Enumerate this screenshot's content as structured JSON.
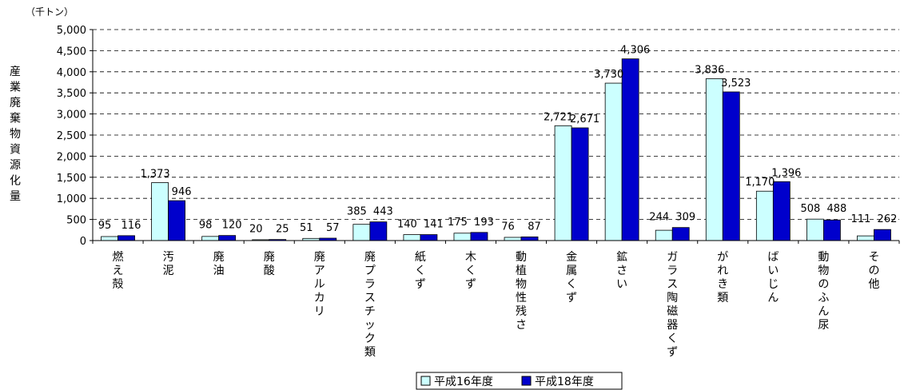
{
  "chart_data": {
    "type": "bar",
    "unit_label": "（千トン）",
    "ylabel": "産業廃棄物資源化量",
    "ylim": [
      0,
      5000
    ],
    "yticks": [
      0,
      500,
      1000,
      1500,
      2000,
      2500,
      3000,
      3500,
      4000,
      4500,
      5000
    ],
    "ytick_labels": [
      "0",
      "500",
      "1,000",
      "1,500",
      "2,000",
      "2,500",
      "3,000",
      "3,500",
      "4,000",
      "4,500",
      "5,000"
    ],
    "grid": true,
    "legend_position": "bottom",
    "categories": [
      "燃え殻",
      "汚泥",
      "廃油",
      "廃酸",
      "廃アルカリ",
      "廃プラスチック類",
      "紙くず",
      "木くず",
      "動植物性残さ",
      "金属くず",
      "鉱さい",
      "ガラス陶磁器くず",
      "がれき類",
      "ばいじん",
      "動物のふん尿",
      "その他"
    ],
    "series": [
      {
        "name": "平成16年度",
        "color": "#ccffff",
        "values": [
          95,
          1373,
          98,
          20,
          51,
          385,
          140,
          175,
          76,
          2721,
          3730,
          244,
          3836,
          1170,
          508,
          111
        ],
        "labels": [
          "95",
          "1,373",
          "98",
          "20",
          "51",
          "385",
          "140",
          "175",
          "76",
          "2,721",
          "3,730",
          "244",
          "3,836",
          "1,170",
          "508",
          "111"
        ]
      },
      {
        "name": "平成18年度",
        "color": "#0000cc",
        "values": [
          116,
          946,
          120,
          25,
          57,
          443,
          141,
          193,
          87,
          2671,
          4306,
          309,
          3523,
          1396,
          488,
          262
        ],
        "labels": [
          "116",
          "946",
          "120",
          "25",
          "57",
          "443",
          "141",
          "193",
          "87",
          "2,671",
          "4,306",
          "309",
          "3,523",
          "1,396",
          "488",
          "262"
        ]
      }
    ]
  }
}
